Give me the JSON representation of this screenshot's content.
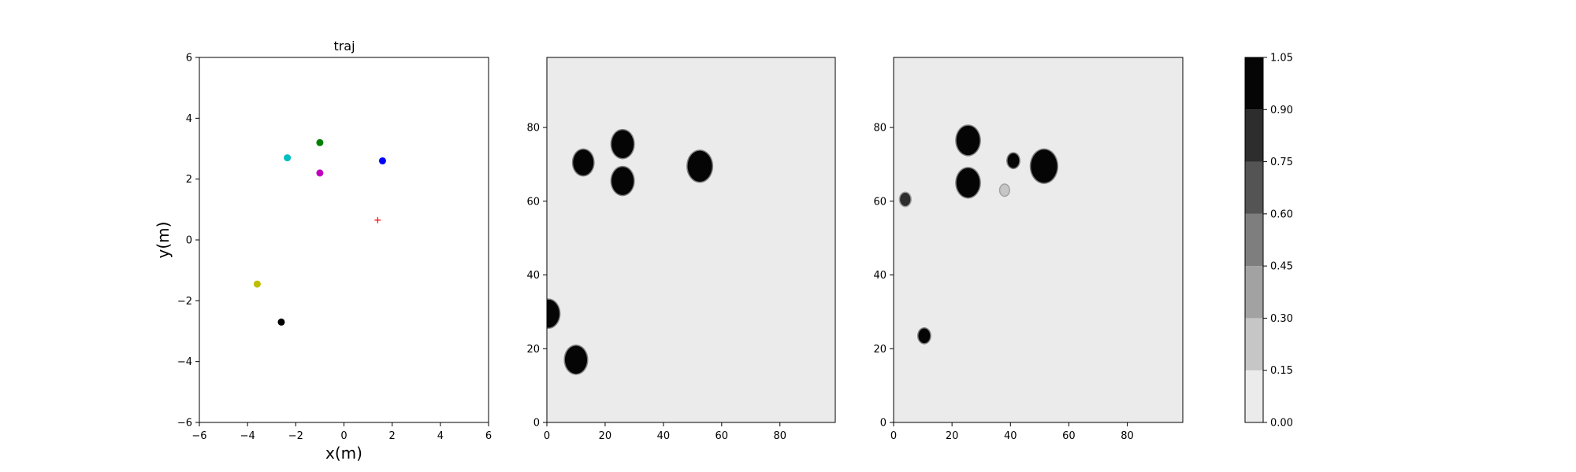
{
  "chart_data": [
    {
      "type": "scatter",
      "title": "traj",
      "xlabel": "x(m)",
      "ylabel": "y(m)",
      "xlim": [
        -6,
        6
      ],
      "ylim": [
        -6,
        6
      ],
      "xticks": [
        -6,
        -4,
        -2,
        0,
        2,
        4,
        6
      ],
      "yticks": [
        -6,
        -4,
        -2,
        0,
        2,
        4,
        6
      ],
      "grid": false,
      "points": [
        {
          "x": -1.0,
          "y": 3.2,
          "color": "#008000",
          "marker": "circle"
        },
        {
          "x": -2.35,
          "y": 2.7,
          "color": "#00bfbf",
          "marker": "circle"
        },
        {
          "x": 1.6,
          "y": 2.6,
          "color": "#0000ff",
          "marker": "circle"
        },
        {
          "x": -1.0,
          "y": 2.2,
          "color": "#bf00bf",
          "marker": "circle"
        },
        {
          "x": 1.4,
          "y": 0.65,
          "color": "#ff0000",
          "marker": "plus"
        },
        {
          "x": -3.6,
          "y": -1.45,
          "color": "#bfbf00",
          "marker": "circle"
        },
        {
          "x": -2.6,
          "y": -2.7,
          "color": "#000000",
          "marker": "circle"
        }
      ]
    },
    {
      "type": "heatmap",
      "xlim": [
        0,
        99
      ],
      "ylim": [
        0,
        99
      ],
      "xticks": [
        0,
        20,
        40,
        60,
        80
      ],
      "yticks": [
        0,
        20,
        40,
        60,
        80
      ],
      "background_value": 0.05,
      "blobs": [
        {
          "x": 12.5,
          "y": 70.5,
          "r": 3.5,
          "value": 1.0
        },
        {
          "x": 26,
          "y": 75.5,
          "r": 3.8,
          "value": 1.0
        },
        {
          "x": 26,
          "y": 65.5,
          "r": 3.8,
          "value": 1.0
        },
        {
          "x": 52.5,
          "y": 69.5,
          "r": 4.2,
          "value": 1.0
        },
        {
          "x": 0.5,
          "y": 29.5,
          "r": 3.8,
          "value": 1.0
        },
        {
          "x": 10,
          "y": 17,
          "r": 3.8,
          "value": 1.0
        }
      ]
    },
    {
      "type": "heatmap",
      "xlim": [
        0,
        99
      ],
      "ylim": [
        0,
        99
      ],
      "xticks": [
        0,
        20,
        40,
        60,
        80
      ],
      "yticks": [
        0,
        20,
        40,
        60,
        80
      ],
      "background_value": 0.05,
      "blobs": [
        {
          "x": 25.5,
          "y": 76.5,
          "r": 4.0,
          "value": 1.0
        },
        {
          "x": 25.5,
          "y": 65.0,
          "r": 4.0,
          "value": 1.0
        },
        {
          "x": 41,
          "y": 71,
          "r": 2.0,
          "value": 0.95
        },
        {
          "x": 51.5,
          "y": 69.5,
          "r": 4.5,
          "value": 1.0
        },
        {
          "x": 4,
          "y": 60.5,
          "r": 1.8,
          "value": 0.8
        },
        {
          "x": 10.5,
          "y": 23.5,
          "r": 2.0,
          "value": 0.95
        },
        {
          "x": 38,
          "y": 63,
          "r": 1.5,
          "value": 0.2
        }
      ]
    }
  ],
  "colorbar": {
    "levels": [
      0.0,
      0.15,
      0.3,
      0.45,
      0.6,
      0.75,
      0.9,
      1.05
    ],
    "tick_labels": [
      "0.00",
      "0.15",
      "0.30",
      "0.45",
      "0.60",
      "0.75",
      "0.90",
      "1.05"
    ],
    "colors": [
      "#ebebeb",
      "#c6c6c6",
      "#a2a2a2",
      "#7e7e7e",
      "#545454",
      "#2d2d2d",
      "#050505"
    ]
  }
}
